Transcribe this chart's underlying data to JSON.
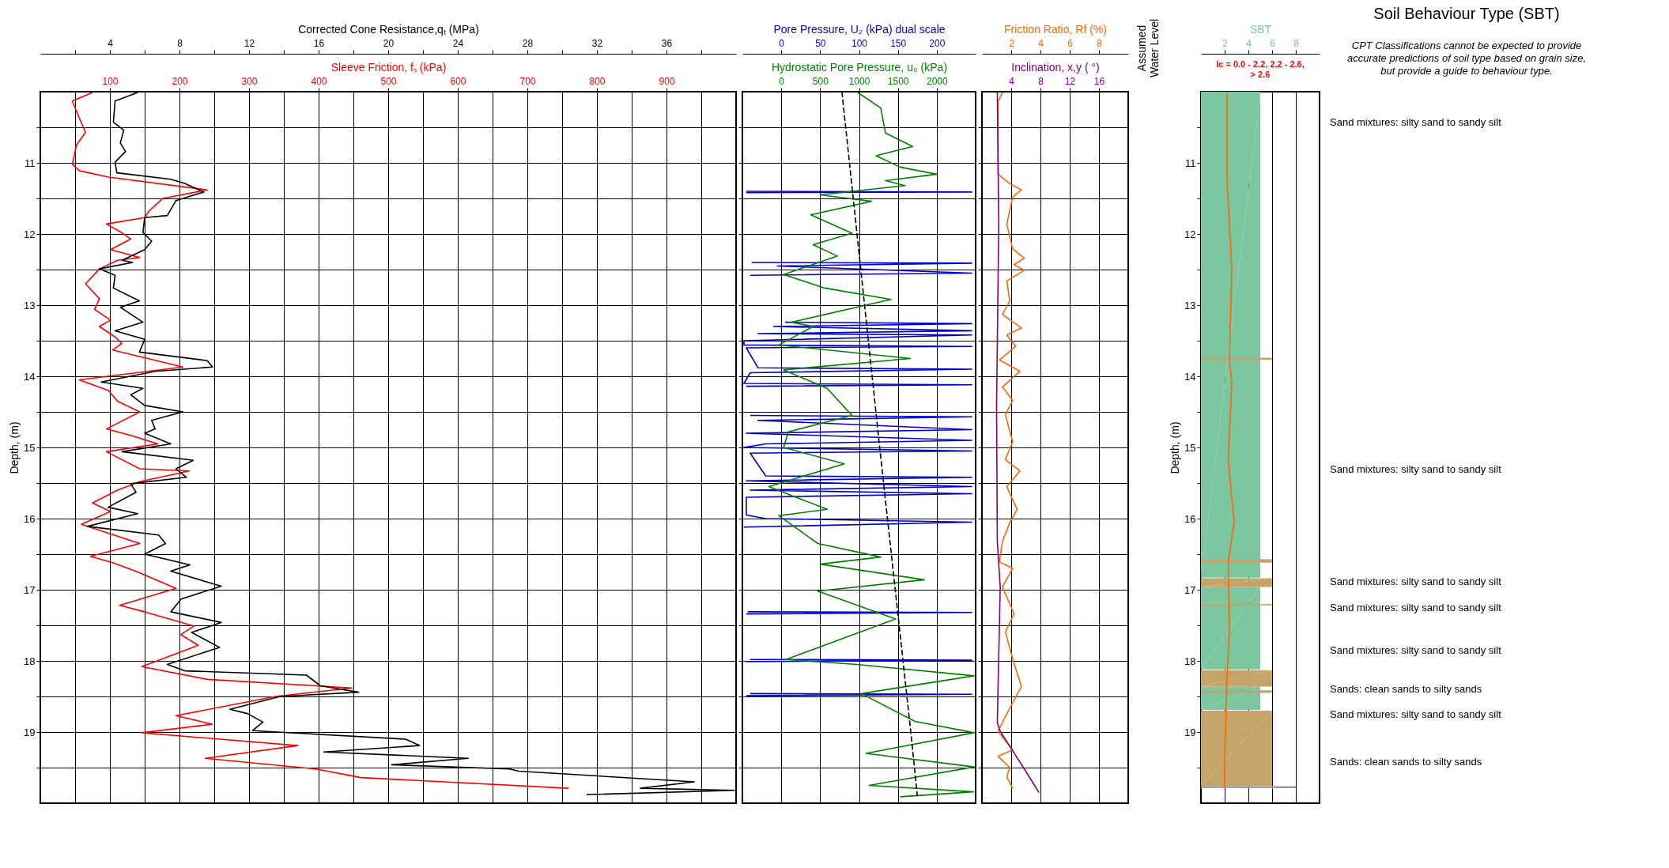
{
  "chart_data": [
    {
      "type": "line",
      "orientation": "horizontal",
      "ylabel": "Depth, (m)",
      "xlabel": "Sleeve Friction, fₛ (kPa)",
      "x2label": "Corrected Cone Resistance,qₜ (MPa)",
      "xlim": [
        0,
        1000
      ],
      "xticks": [
        100,
        200,
        300,
        400,
        500,
        600,
        700,
        800,
        900
      ],
      "x2lim": [
        0,
        40
      ],
      "x2ticks": [
        {
          "value": 2,
          "label": null
        },
        4,
        {
          "value": 6,
          "label": null
        },
        8,
        {
          "value": 10,
          "label": null
        },
        12,
        {
          "value": 14,
          "label": null
        },
        16,
        {
          "value": 18,
          "label": null
        },
        20,
        {
          "value": 22,
          "label": null
        },
        24,
        {
          "value": 26,
          "label": null
        },
        28,
        {
          "value": 30,
          "label": null
        },
        32,
        {
          "value": 34,
          "label": null
        },
        36,
        {
          "value": 38,
          "label": null
        }
      ],
      "ylim": [
        20,
        10
      ],
      "yticks": [
        {
          "value": 10.5,
          "label": null
        },
        11,
        {
          "value": 11.5,
          "label": null
        },
        12,
        {
          "value": 12.5,
          "label": null
        },
        13,
        {
          "value": 13.5,
          "label": null
        },
        14,
        {
          "value": 14.5,
          "label": null
        },
        15,
        {
          "value": 15.5,
          "label": null
        },
        16,
        {
          "value": 16.5,
          "label": null
        },
        17,
        {
          "value": 17.5,
          "label": null
        },
        18,
        {
          "value": 18.5,
          "label": null
        },
        19,
        {
          "value": 19.5,
          "label": null
        }
      ],
      "grid": true,
      "series": [
        {
          "color": "#ff0000",
          "x": [
            10.01,
            10.13,
            10.37,
            10.57,
            10.75,
            11.02,
            11.11,
            11.2,
            11.38,
            11.5,
            11.68,
            11.77,
            11.86,
            11.98,
            12.07,
            12.22,
            12.33,
            12.37,
            12.49,
            12.7,
            12.91,
            13.06,
            13.21,
            13.3,
            13.45,
            13.54,
            13.63,
            13.87,
            14.05,
            14.2,
            14.35,
            14.5,
            14.74,
            14.83,
            14.95,
            15.06,
            15.3,
            15.33,
            15.48,
            15.6,
            15.78,
            15.9,
            16.08,
            16.35,
            16.53,
            16.62,
            16.74,
            16.98,
            17.22,
            17.31,
            17.51,
            17.63,
            17.78,
            18.08,
            18.26,
            18.38,
            18.5,
            18.77,
            18.89,
            19.01,
            19.19,
            19.37,
            19.52,
            19.64,
            19.79
          ],
          "values": [
            75,
            46,
            56,
            65,
            52,
            46,
            56,
            98,
            240,
            176,
            156,
            150,
            95,
            117,
            130,
            101,
            143,
            111,
            85,
            65,
            85,
            78,
            101,
            85,
            108,
            117,
            104,
            205,
            56,
            98,
            111,
            143,
            95,
            130,
            169,
            95,
            143,
            214,
            143,
            111,
            75,
            101,
            59,
            143,
            72,
            104,
            137,
            195,
            114,
            150,
            221,
            202,
            227,
            146,
            240,
            448,
            338,
            195,
            247,
            146,
            370,
            237,
            396,
            461,
            759
          ]
        },
        {
          "color": "#000000",
          "axis": "x2",
          "x": [
            10.01,
            10.13,
            10.43,
            10.54,
            10.72,
            10.84,
            10.99,
            11.14,
            11.23,
            11.29,
            11.41,
            11.47,
            11.53,
            11.74,
            11.77,
            11.98,
            12.1,
            12.22,
            12.37,
            12.4,
            12.49,
            12.58,
            12.76,
            12.88,
            12.94,
            13.03,
            13.24,
            13.36,
            13.48,
            13.66,
            13.78,
            13.87,
            13.93,
            14.08,
            14.17,
            14.26,
            14.41,
            14.5,
            14.62,
            14.74,
            14.8,
            14.95,
            15.06,
            15.18,
            15.3,
            15.42,
            15.51,
            15.63,
            15.84,
            15.93,
            16.11,
            16.23,
            16.35,
            16.5,
            16.65,
            16.74,
            16.95,
            17.13,
            17.31,
            17.46,
            17.6,
            17.81,
            18.05,
            18.14,
            18.2,
            18.35,
            18.44,
            18.5,
            18.68,
            18.74,
            18.86,
            18.98,
            19.1,
            19.19,
            19.28,
            19.37,
            19.46,
            19.52,
            19.55,
            19.7,
            19.79,
            19.82,
            19.88
          ],
          "values": [
            5.6,
            4.3,
            4.2,
            4.8,
            4.6,
            4.9,
            4.3,
            4.4,
            7.5,
            8.3,
            9.4,
            8.6,
            7.8,
            7.3,
            6.0,
            5.9,
            6.4,
            6.0,
            4.7,
            5.3,
            3.4,
            4.3,
            4.2,
            5.2,
            5.7,
            4.6,
            5.9,
            4.3,
            6.0,
            5.7,
            9.6,
            9.9,
            6.6,
            3.5,
            5.9,
            5.2,
            6.0,
            8.2,
            6.4,
            6.6,
            6.0,
            7.5,
            4.7,
            8.8,
            7.8,
            8.4,
            5.2,
            5.5,
            3.9,
            5.6,
            2.7,
            6.8,
            7.2,
            6.0,
            8.6,
            7.5,
            10.4,
            8.1,
            7.5,
            10.4,
            8.7,
            10.3,
            7.3,
            8.3,
            15.3,
            16.1,
            18.3,
            13.8,
            10.9,
            11.9,
            12.8,
            12.2,
            21.0,
            21.8,
            16.3,
            24.6,
            20.2,
            27.0,
            27.5,
            37.6,
            34.5,
            39.9,
            31.4
          ]
        }
      ]
    },
    {
      "type": "line",
      "orientation": "horizontal",
      "xlabel": "Hydrostatic Pore Pressure, u₀ (kPa)",
      "x2label": "Pore Pressure, U₂ (kPa) dual scale",
      "xlim": [
        -500,
        2500
      ],
      "xticks": [
        0,
        500,
        1000,
        1500,
        2000
      ],
      "x2lim": [
        -50,
        250
      ],
      "x2ticks": [
        0,
        50,
        100,
        150,
        200
      ],
      "ylim": [
        20,
        10
      ],
      "yticks": [
        {
          "value": 10.5,
          "label": null
        },
        11,
        {
          "value": 11.5,
          "label": null
        },
        12,
        {
          "value": 12.5,
          "label": null
        },
        13,
        {
          "value": 13.5,
          "label": null
        },
        14,
        {
          "value": 14.5,
          "label": null
        },
        15,
        {
          "value": 15.5,
          "label": null
        },
        16,
        {
          "value": 16.5,
          "label": null
        },
        17,
        {
          "value": 17.5,
          "label": null
        },
        18,
        {
          "value": 18.5,
          "label": null
        },
        19,
        {
          "value": 19.5,
          "label": null
        }
      ],
      "grid": true,
      "tick_labels": "x",
      "series": [
        {
          "color": "#0000cc",
          "axis": "x2",
          "x": [
            11.4,
            11.41,
            11.42,
            11.5,
            12.4,
            12.41,
            12.45,
            12.55,
            12.58,
            12.7,
            13.24,
            13.26,
            13.3,
            13.36,
            13.4,
            13.42,
            13.5,
            13.56,
            13.58,
            13.6,
            13.88,
            13.9,
            13.95,
            14.1,
            14.12,
            14.14,
            14.3,
            14.55,
            14.57,
            14.62,
            14.75,
            14.8,
            14.9,
            14.95,
            15.0,
            15.05,
            15.08,
            15.4,
            15.42,
            15.47,
            15.55,
            15.6,
            15.65,
            15.7,
            15.95,
            16.0,
            16.05,
            16.12,
            16.2,
            17.31,
            17.32,
            17.34,
            17.4,
            17.98,
            17.99,
            18.01,
            18.1,
            18.46,
            18.47,
            18.49
          ],
          "values": [
            -45,
            245,
            -45,
            null,
            -38,
            245,
            -5,
            245,
            -40,
            null,
            5,
            245,
            -10,
            245,
            -30,
            245,
            -48,
            -48,
            245,
            -45,
            -30,
            245,
            -40,
            -48,
            245,
            -45,
            null,
            -40,
            245,
            -30,
            245,
            -45,
            245,
            -20,
            -48,
            245,
            -40,
            -20,
            245,
            -45,
            245,
            -40,
            245,
            -45,
            -45,
            -20,
            245,
            -48,
            null,
            -43,
            245,
            -45,
            null,
            -40,
            245,
            -45,
            null,
            -40,
            245,
            -45
          ]
        },
        {
          "color": "#008000",
          "x": [
            10.0,
            10.23,
            10.58,
            10.77,
            10.9,
            11.06,
            11.16,
            11.25,
            11.32,
            11.45,
            11.54,
            11.73,
            11.99,
            12.15,
            12.31,
            12.57,
            12.76,
            12.92,
            13.24,
            13.3,
            13.56,
            13.75,
            13.91,
            14.17,
            14.55,
            14.78,
            15.0,
            15.23,
            15.55,
            15.87,
            15.96,
            16.35,
            16.54,
            16.64,
            16.86,
            17.02,
            17.41,
            17.98,
            18.05,
            18.21,
            18.46,
            18.85,
            19.01,
            19.3,
            19.49,
            19.75,
            19.84,
            19.91
          ],
          "values": [
            970,
            1280,
            1340,
            1690,
            1220,
            1530,
            2000,
            1340,
            1590,
            500,
            1160,
            380,
            910,
            410,
            720,
            30,
            560,
            1410,
            130,
            410,
            -30,
            1660,
            30,
            590,
            910,
            90,
            30,
            810,
            -160,
            590,
            -30,
            470,
            1280,
            500,
            1840,
            470,
            1470,
            60,
            970,
            2480,
            1030,
            1720,
            2480,
            1090,
            2480,
            1130,
            2470,
            1530
          ]
        },
        {
          "color": "#000000",
          "axis": "x2",
          "line_style": "dashed",
          "x": [
            10.0,
            14.94,
            19.04,
            19.9
          ],
          "values": [
            78,
            126,
            167,
            175
          ]
        }
      ]
    },
    {
      "type": "line",
      "orientation": "horizontal",
      "xlabel": "Inclination, x,y ( °)",
      "x2label": "Friction Ratio, Rf (%)",
      "xlim": [
        0,
        20
      ],
      "xticks": [
        4,
        8,
        12,
        16
      ],
      "x2lim": [
        0,
        10
      ],
      "x2ticks": [
        2,
        4,
        6,
        8
      ],
      "ylim": [
        20,
        10
      ],
      "yticks": [
        {
          "value": 10.5,
          "label": null
        },
        11,
        {
          "value": 11.5,
          "label": null
        },
        12,
        {
          "value": 12.5,
          "label": null
        },
        13,
        {
          "value": 13.5,
          "label": null
        },
        14,
        {
          "value": 14.5,
          "label": null
        },
        15,
        {
          "value": 15.5,
          "label": null
        },
        16,
        {
          "value": 16.5,
          "label": null
        },
        17,
        {
          "value": 17.5,
          "label": null
        },
        18,
        {
          "value": 18.5,
          "label": null
        },
        19,
        {
          "value": 19.5,
          "label": null
        }
      ],
      "grid": true,
      "tick_labels": "x",
      "series": [
        {
          "color": "#ff6600",
          "axis": "x2",
          "x": [
            10.01,
            10.14,
            10.59,
            11.16,
            11.29,
            11.38,
            11.48,
            11.86,
            12.21,
            12.34,
            12.43,
            12.51,
            12.66,
            12.94,
            13.13,
            13.32,
            13.42,
            13.58,
            13.77,
            13.93,
            14.15,
            14.34,
            14.54,
            14.92,
            15.17,
            15.33,
            15.55,
            15.87,
            16.06,
            16.32,
            16.61,
            16.7,
            16.96,
            17.34,
            17.59,
            17.97,
            18.36,
            18.74,
            18.99,
            19.25,
            19.34,
            19.5,
            19.63,
            19.79
          ],
          "values": [
            1.4,
            1.1,
            1.1,
            1.1,
            1.9,
            2.7,
            2.1,
            1.7,
            2.1,
            2.9,
            2.2,
            2.9,
            1.7,
            1.9,
            1.4,
            2.7,
            1.7,
            2.3,
            1.2,
            2.6,
            1.4,
            2.1,
            1.6,
            2.1,
            1.6,
            2.6,
            1.7,
            2.4,
            1.9,
            1.4,
            1.2,
            2.1,
            1.4,
            2.2,
            1.6,
            2.1,
            2.7,
            1.7,
            1.1,
            2.1,
            1.1,
            1.9,
            1.7,
            2.1
          ]
        },
        {
          "color": "#800080",
          "x": [
            10.01,
            11.86,
            14.41,
            16.32,
            16.96,
            18.87,
            18.99,
            19.31,
            19.57,
            19.85
          ],
          "values": [
            2.1,
            2.3,
            2.0,
            2.1,
            2.5,
            2.1,
            2.5,
            4.5,
            6.1,
            7.8
          ]
        }
      ]
    },
    {
      "type": "other",
      "title": "Assumed Water Level"
    },
    {
      "type": "area",
      "orientation": "horizontal",
      "ylabel": "Depth, (m)",
      "x2label": "SBT",
      "x2lim": [
        0,
        10
      ],
      "x2ticks": [
        2,
        4,
        6,
        8
      ],
      "ylim": [
        20,
        10
      ],
      "yticks": [
        {
          "value": 10.5,
          "label": null
        },
        11,
        {
          "value": 11.5,
          "label": null
        },
        12,
        {
          "value": 12.5,
          "label": null
        },
        13,
        {
          "value": 13.5,
          "label": null
        },
        14,
        {
          "value": 14.5,
          "label": null
        },
        15,
        {
          "value": 15.5,
          "label": null
        },
        16,
        {
          "value": 16.5,
          "label": null
        },
        17,
        {
          "value": 17.5,
          "label": null
        },
        18,
        {
          "value": 18.5,
          "label": null
        },
        19,
        {
          "value": 19.5,
          "label": null
        }
      ],
      "grid": "x",
      "annotations": [
        "Ic = 0.0 - 2.2, 2.2 - 2.6, > 2.6"
      ],
      "series": [
        {
          "color": "#7cc6a0",
          "axis": "x2",
          "x": [
            10.0,
            16.83,
            16.9,
            16.96,
            18.12,
            18.2,
            18.36,
            18.69
          ],
          "values": [
            5,
            5,
            null,
            5,
            5,
            null,
            5,
            5
          ]
        },
        {
          "color": "#c4a468",
          "axis": "x2",
          "x": [
            13.74,
            13.77,
            13.8,
            16.57,
            16.62,
            16.7,
            16.84,
            16.96,
            17.0,
            17.2,
            17.22,
            17.3,
            18.13,
            18.36,
            18.38,
            18.41,
            18.45,
            18.5,
            18.7,
            19.76
          ],
          "values": [
            6,
            6,
            null,
            6,
            6,
            null,
            6,
            6,
            null,
            6,
            6,
            null,
            6,
            6,
            null,
            6,
            6,
            null,
            6,
            6
          ]
        },
        {
          "color": "#999999",
          "axis": "x2",
          "x": [
            19.76,
            19.79
          ],
          "values": [
            8,
            8
          ]
        },
        {
          "color": "#ff6600",
          "axis": "x2",
          "type": "line",
          "x": [
            10.01,
            11.22,
            12.5,
            13.77,
            14.09,
            15.17,
            16.06,
            16.61,
            17.59,
            18.23,
            18.87,
            19.38,
            19.79
          ],
          "values": [
            2.2,
            2.2,
            2.6,
            2.4,
            2.6,
            2.3,
            2.8,
            2.3,
            2.4,
            2.2,
            2.1,
            2.0,
            2.0
          ]
        }
      ]
    },
    {
      "type": "other",
      "title": "Soil Behaviour Type (SBT)",
      "subtitle": "CPT Classifications cannot be expected to provide accurate predictions of soil type based on grain size, but provide a guide to behaviour type.",
      "annotations": [
        "Sand mixtures: silty sand to sandy silt",
        "Sand mixtures: silty sand to sandy silt",
        "Sand mixtures: silty sand to sandy silt",
        "Sand mixtures: silty sand to sandy silt",
        "Sand mixtures: silty sand to sandy silt",
        "Sands: clean sands to silty sands",
        "Sand mixtures: silty sand to sandy silt",
        "Sands: clean sands to silty sands"
      ]
    }
  ]
}
